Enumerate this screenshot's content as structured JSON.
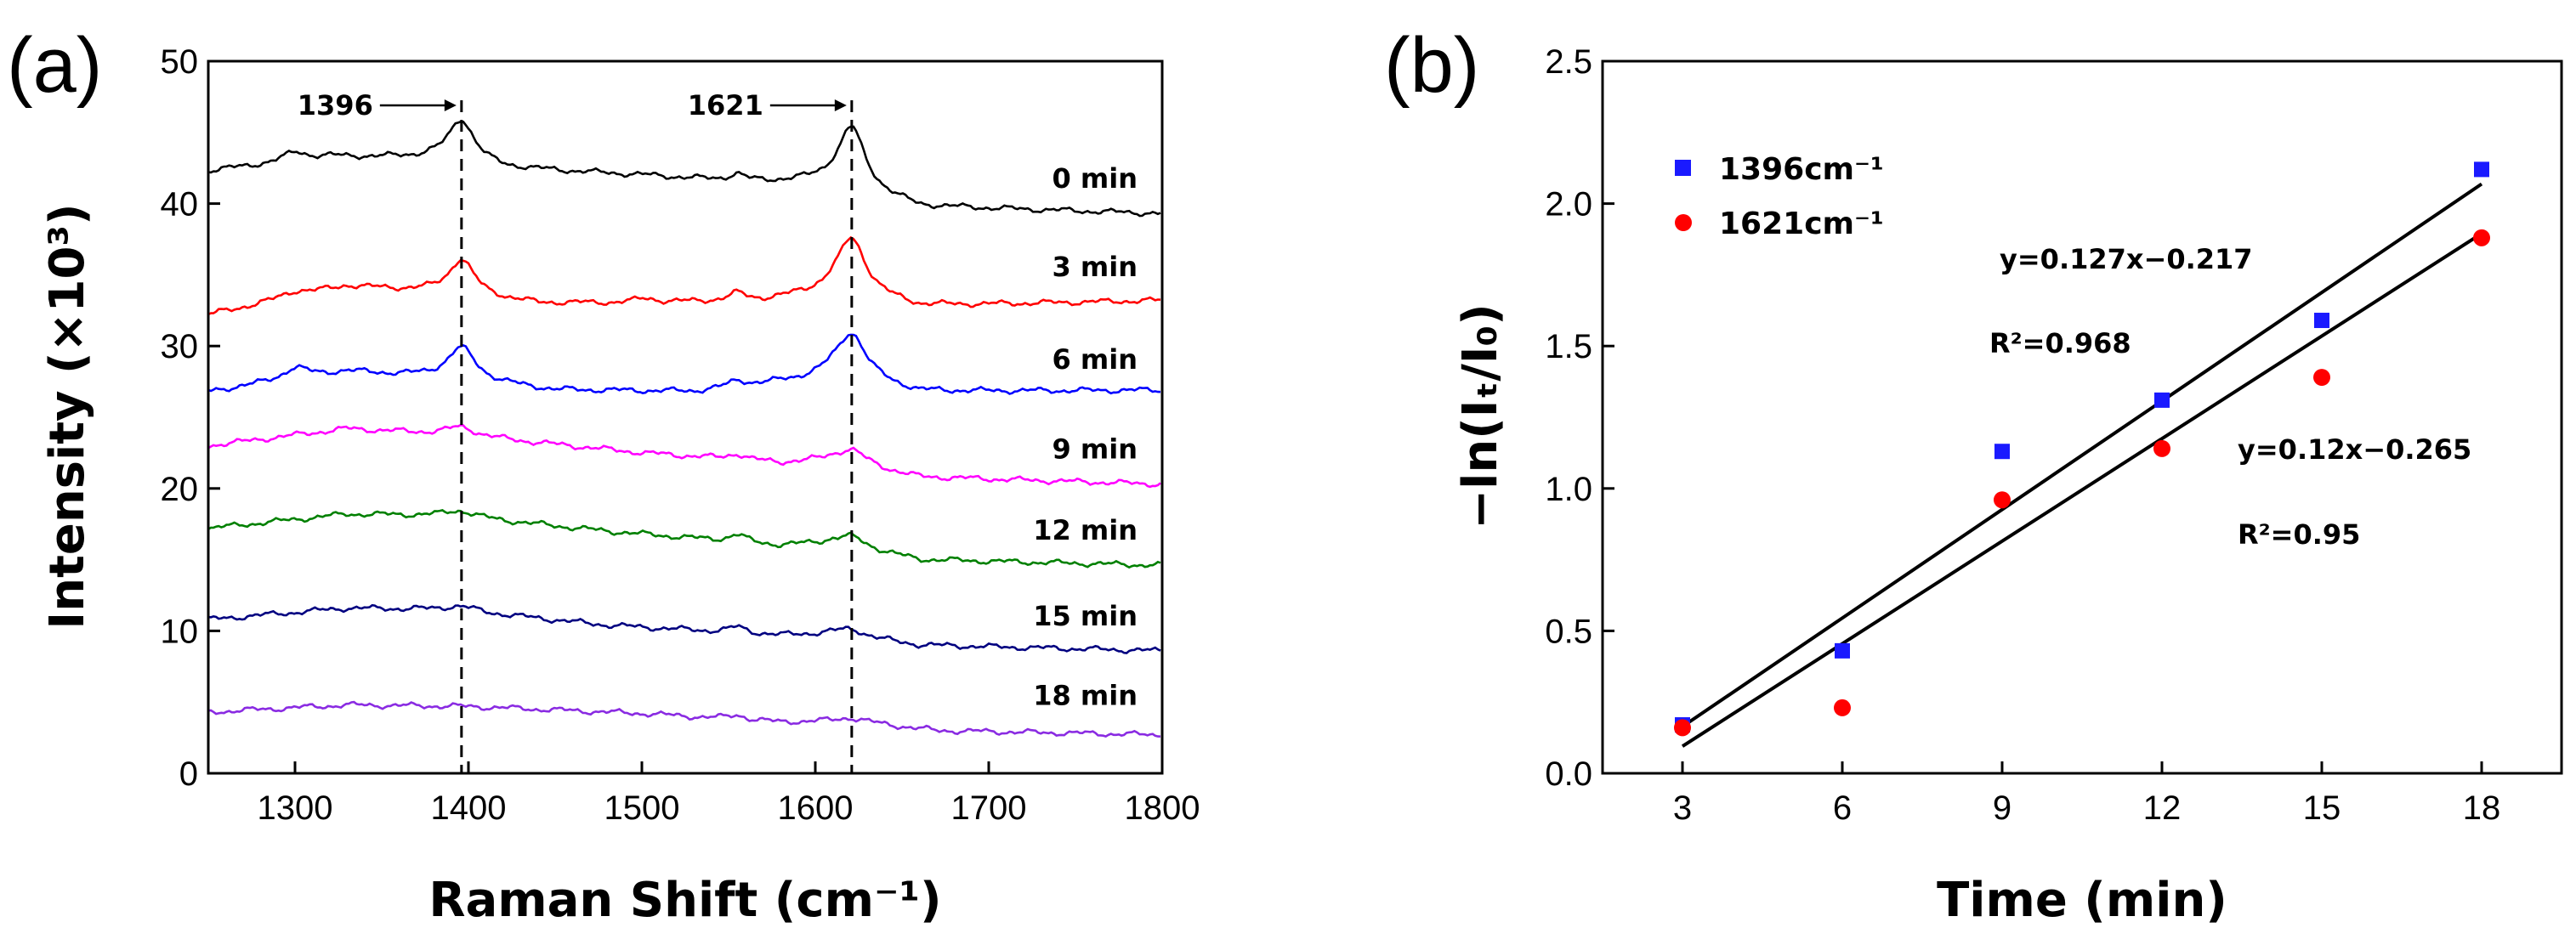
{
  "figure": {
    "panel_a_label": "(a)",
    "panel_b_label": "(b)"
  },
  "chart_data": [
    {
      "type": "line",
      "panel": "(a)",
      "xlabel": "Raman Shift (cm⁻¹)",
      "ylabel": "Intensity (×10³)",
      "xlim": [
        1250,
        1800
      ],
      "ylim": [
        0,
        50
      ],
      "xticks": [
        1300,
        1400,
        1500,
        1600,
        1700,
        1800
      ],
      "yticks": [
        0,
        10,
        20,
        30,
        40,
        50
      ],
      "peaks": [
        {
          "label": "1396",
          "x": 1396
        },
        {
          "label": "1621",
          "x": 1621
        }
      ],
      "series": [
        {
          "name": "0 min",
          "color": "#000000",
          "baseline": [
            [
              1250,
              42.3
            ],
            [
              1320,
              43.3
            ],
            [
              1380,
              43.2
            ],
            [
              1420,
              42.5
            ],
            [
              1500,
              42.0
            ],
            [
              1560,
              41.5
            ],
            [
              1610,
              41.6
            ],
            [
              1660,
              39.8
            ],
            [
              1800,
              39.3
            ]
          ],
          "peaks": [
            [
              1300,
              0.6,
              8
            ],
            [
              1396,
              3.0,
              9
            ],
            [
              1555,
              0.5,
              6
            ],
            [
              1621,
              4.2,
              9
            ]
          ],
          "label_y": 40.5
        },
        {
          "name": "3 min",
          "color": "#ff0000",
          "baseline": [
            [
              1250,
              32.2
            ],
            [
              1330,
              34.2
            ],
            [
              1380,
              33.8
            ],
            [
              1440,
              33.0
            ],
            [
              1500,
              33.0
            ],
            [
              1570,
              33.2
            ],
            [
              1610,
              33.8
            ],
            [
              1660,
              32.8
            ],
            [
              1800,
              33.2
            ]
          ],
          "peaks": [
            [
              1300,
              0.4,
              10
            ],
            [
              1396,
              2.5,
              9
            ],
            [
              1502,
              0.3,
              8
            ],
            [
              1555,
              0.5,
              6
            ],
            [
              1621,
              4.0,
              10
            ]
          ],
          "label_y": 34.3
        },
        {
          "name": "6 min",
          "color": "#0000ff",
          "baseline": [
            [
              1250,
              26.8
            ],
            [
              1330,
              28.2
            ],
            [
              1380,
              27.8
            ],
            [
              1450,
              26.9
            ],
            [
              1530,
              26.8
            ],
            [
              1590,
              27.6
            ],
            [
              1610,
              28.0
            ],
            [
              1660,
              26.8
            ],
            [
              1800,
              26.9
            ]
          ],
          "peaks": [
            [
              1300,
              0.8,
              9
            ],
            [
              1396,
              2.3,
              10
            ],
            [
              1555,
              0.4,
              6
            ],
            [
              1621,
              3.2,
              10
            ]
          ],
          "label_y": 27.8
        },
        {
          "name": "9 min",
          "color": "#ff00ff",
          "baseline": [
            [
              1250,
              23.0
            ],
            [
              1330,
              24.2
            ],
            [
              1390,
              23.8
            ],
            [
              1500,
              22.5
            ],
            [
              1580,
              21.8
            ],
            [
              1610,
              22.0
            ],
            [
              1660,
              20.8
            ],
            [
              1800,
              20.3
            ]
          ],
          "peaks": [
            [
              1396,
              0.6,
              10
            ],
            [
              1555,
              0.4,
              6
            ],
            [
              1621,
              1.0,
              10
            ]
          ],
          "label_y": 21.5
        },
        {
          "name": "12 min",
          "color": "#008000",
          "baseline": [
            [
              1250,
              17.2
            ],
            [
              1330,
              18.2
            ],
            [
              1390,
              18.1
            ],
            [
              1480,
              17.0
            ],
            [
              1580,
              16.0
            ],
            [
              1610,
              16.2
            ],
            [
              1660,
              15.0
            ],
            [
              1800,
              14.6
            ]
          ],
          "peaks": [
            [
              1396,
              0.4,
              10
            ],
            [
              1555,
              0.5,
              6
            ],
            [
              1621,
              0.7,
              10
            ]
          ],
          "label_y": 15.8
        },
        {
          "name": "15 min",
          "color": "#000080",
          "baseline": [
            [
              1250,
              10.8
            ],
            [
              1330,
              11.6
            ],
            [
              1390,
              11.5
            ],
            [
              1480,
              10.4
            ],
            [
              1580,
              9.7
            ],
            [
              1610,
              9.8
            ],
            [
              1660,
              9.0
            ],
            [
              1800,
              8.6
            ]
          ],
          "peaks": [
            [
              1396,
              0.3,
              10
            ],
            [
              1555,
              0.4,
              6
            ],
            [
              1621,
              0.5,
              10
            ]
          ],
          "label_y": 9.8
        },
        {
          "name": "18 min",
          "color": "#8a2be2",
          "baseline": [
            [
              1250,
              4.3
            ],
            [
              1330,
              4.8
            ],
            [
              1400,
              4.7
            ],
            [
              1500,
              4.2
            ],
            [
              1580,
              3.6
            ],
            [
              1620,
              3.7
            ],
            [
              1670,
              3.0
            ],
            [
              1800,
              2.7
            ]
          ],
          "peaks": [
            [
              1555,
              0.3,
              6
            ],
            [
              1621,
              0.2,
              10
            ]
          ],
          "label_y": 4.2
        }
      ]
    },
    {
      "type": "scatter",
      "panel": "(b)",
      "xlabel": "Time (min)",
      "ylabel": "−ln(Iₜ/I₀)",
      "xlim": [
        1.5,
        19.5
      ],
      "ylim": [
        0,
        2.5
      ],
      "xticks": [
        3,
        6,
        9,
        12,
        15,
        18
      ],
      "yticks": [
        0.0,
        0.5,
        1.0,
        1.5,
        2.0,
        2.5
      ],
      "x": [
        3,
        6,
        9,
        12,
        15,
        18
      ],
      "legend_position": "top-left",
      "series": [
        {
          "name": "1396cm⁻¹",
          "marker": "square",
          "color": "#1a1aff",
          "values": [
            0.17,
            0.43,
            1.13,
            1.31,
            1.59,
            2.12
          ],
          "fit": {
            "slope": 0.127,
            "intercept": -0.217,
            "equation": "y=0.127x−0.217",
            "r2": "R²=0.968"
          }
        },
        {
          "name": "1621cm⁻¹",
          "marker": "circle",
          "color": "#ff0000",
          "values": [
            0.16,
            0.23,
            0.96,
            1.14,
            1.39,
            1.88
          ],
          "fit": {
            "slope": 0.12,
            "intercept": -0.265,
            "equation": "y=0.12x−0.265",
            "r2": "R²=0.95"
          }
        }
      ]
    }
  ]
}
